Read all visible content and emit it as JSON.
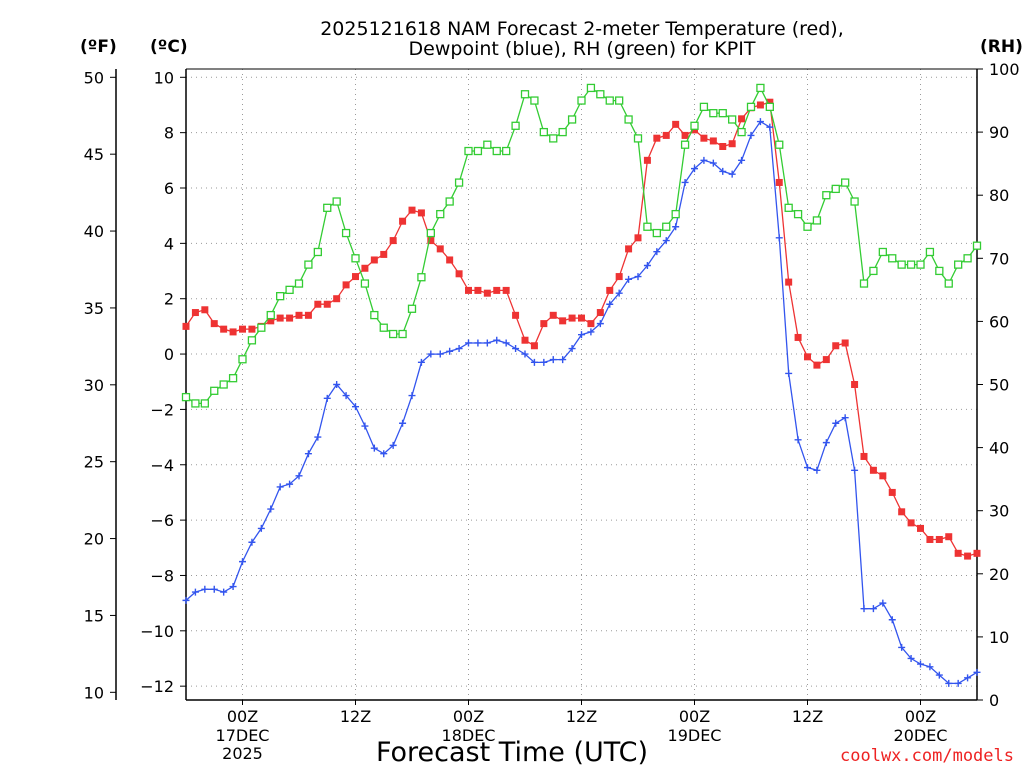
{
  "chart_data": {
    "type": "line",
    "title_line1": "2025121618 NAM Forecast 2-meter Temperature (red),",
    "title_line2": "Dewpoint (blue), RH (green) for KPIT",
    "units": {
      "fahrenheit": "(ºF)",
      "celsius": "(ºC)",
      "rh": "(RH)"
    },
    "xlabel": "Forecast Time (UTC)",
    "credit": "coolwx.com/models",
    "x_unit": "forecast hour",
    "xlim": [
      0,
      84
    ],
    "ylim_celsius": [
      -12.5,
      10.3
    ],
    "ylim_rh": [
      0,
      100
    ],
    "yticks_celsius": [
      "10",
      "8",
      "6",
      "4",
      "2",
      "0",
      "−2",
      "−4",
      "−6",
      "−8",
      "−10",
      "−12"
    ],
    "yticks_fahrenheit": [
      "50",
      "45",
      "40",
      "35",
      "30",
      "25",
      "20",
      "15",
      "10"
    ],
    "yticks_rh": [
      "100",
      "90",
      "80",
      "70",
      "60",
      "50",
      "40",
      "30",
      "20",
      "10",
      "0"
    ],
    "xticks": [
      {
        "hour": 6,
        "line1": "00Z",
        "line2": "17DEC",
        "line3": "2025"
      },
      {
        "hour": 18,
        "line1": "12Z",
        "line2": "",
        "line3": ""
      },
      {
        "hour": 30,
        "line1": "00Z",
        "line2": "18DEC",
        "line3": ""
      },
      {
        "hour": 42,
        "line1": "12Z",
        "line2": "",
        "line3": ""
      },
      {
        "hour": 54,
        "line1": "00Z",
        "line2": "19DEC",
        "line3": ""
      },
      {
        "hour": 66,
        "line1": "12Z",
        "line2": "",
        "line3": ""
      },
      {
        "hour": 78,
        "line1": "00Z",
        "line2": "20DEC",
        "line3": ""
      }
    ],
    "series": [
      {
        "name": "Temperature",
        "unit": "°C",
        "axis": "celsius",
        "color": "#ee3333",
        "marker": "filled-square",
        "points": [
          [
            0,
            1
          ],
          [
            1,
            1.5
          ],
          [
            2,
            1.6
          ],
          [
            3,
            1.1
          ],
          [
            4,
            0.9
          ],
          [
            5,
            0.8
          ],
          [
            6,
            0.9
          ],
          [
            7,
            0.9
          ],
          [
            8,
            1
          ],
          [
            9,
            1.2
          ],
          [
            10,
            1.3
          ],
          [
            11,
            1.3
          ],
          [
            12,
            1.4
          ],
          [
            13,
            1.4
          ],
          [
            14,
            1.8
          ],
          [
            15,
            1.8
          ],
          [
            16,
            2
          ],
          [
            17,
            2.5
          ],
          [
            18,
            2.8
          ],
          [
            19,
            3.1
          ],
          [
            20,
            3.4
          ],
          [
            21,
            3.6
          ],
          [
            22,
            4.1
          ],
          [
            23,
            4.8
          ],
          [
            24,
            5.2
          ],
          [
            25,
            5.1
          ],
          [
            26,
            4.1
          ],
          [
            27,
            3.8
          ],
          [
            28,
            3.4
          ],
          [
            29,
            2.9
          ],
          [
            30,
            2.3
          ],
          [
            31,
            2.3
          ],
          [
            32,
            2.2
          ],
          [
            33,
            2.3
          ],
          [
            34,
            2.3
          ],
          [
            35,
            1.4
          ],
          [
            36,
            0.5
          ],
          [
            37,
            0.3
          ],
          [
            38,
            1.1
          ],
          [
            39,
            1.4
          ],
          [
            40,
            1.2
          ],
          [
            41,
            1.3
          ],
          [
            42,
            1.3
          ],
          [
            43,
            1.1
          ],
          [
            44,
            1.5
          ],
          [
            45,
            2.3
          ],
          [
            46,
            2.8
          ],
          [
            47,
            3.8
          ],
          [
            48,
            4.2
          ],
          [
            49,
            7.0
          ],
          [
            50,
            7.8
          ],
          [
            51,
            7.9
          ],
          [
            52,
            8.3
          ],
          [
            53,
            7.9
          ],
          [
            54,
            8.1
          ],
          [
            55,
            7.8
          ],
          [
            56,
            7.7
          ],
          [
            57,
            7.5
          ],
          [
            58,
            7.6
          ],
          [
            59,
            8.5
          ],
          [
            60,
            8.9
          ],
          [
            61,
            9.0
          ],
          [
            62,
            9.1
          ],
          [
            63,
            6.2
          ],
          [
            64,
            2.6
          ],
          [
            65,
            0.6
          ],
          [
            66,
            -0.1
          ],
          [
            67,
            -0.4
          ],
          [
            68,
            -0.2
          ],
          [
            69,
            0.3
          ],
          [
            70,
            0.4
          ],
          [
            71,
            -1.1
          ],
          [
            72,
            -3.7
          ],
          [
            73,
            -4.2
          ],
          [
            74,
            -4.4
          ],
          [
            75,
            -5.0
          ],
          [
            76,
            -5.7
          ],
          [
            77,
            -6.1
          ],
          [
            78,
            -6.3
          ],
          [
            79,
            -6.7
          ],
          [
            80,
            -6.7
          ],
          [
            81,
            -6.6
          ],
          [
            82,
            -7.2
          ],
          [
            83,
            -7.3
          ],
          [
            84,
            -7.2
          ]
        ]
      },
      {
        "name": "Dewpoint",
        "unit": "°C",
        "axis": "celsius",
        "color": "#3355ee",
        "marker": "plus",
        "points": [
          [
            0,
            -8.9
          ],
          [
            1,
            -8.6
          ],
          [
            2,
            -8.5
          ],
          [
            3,
            -8.5
          ],
          [
            4,
            -8.6
          ],
          [
            5,
            -8.4
          ],
          [
            6,
            -7.5
          ],
          [
            7,
            -6.8
          ],
          [
            8,
            -6.3
          ],
          [
            9,
            -5.6
          ],
          [
            10,
            -4.8
          ],
          [
            11,
            -4.7
          ],
          [
            12,
            -4.4
          ],
          [
            13,
            -3.6
          ],
          [
            14,
            -3.0
          ],
          [
            15,
            -1.6
          ],
          [
            16,
            -1.1
          ],
          [
            17,
            -1.5
          ],
          [
            18,
            -1.9
          ],
          [
            19,
            -2.6
          ],
          [
            20,
            -3.4
          ],
          [
            21,
            -3.6
          ],
          [
            22,
            -3.3
          ],
          [
            23,
            -2.5
          ],
          [
            24,
            -1.5
          ],
          [
            25,
            -0.3
          ],
          [
            26,
            0
          ],
          [
            27,
            0
          ],
          [
            28,
            0.1
          ],
          [
            29,
            0.2
          ],
          [
            30,
            0.4
          ],
          [
            31,
            0.4
          ],
          [
            32,
            0.4
          ],
          [
            33,
            0.5
          ],
          [
            34,
            0.4
          ],
          [
            35,
            0.2
          ],
          [
            36,
            0
          ],
          [
            37,
            -0.3
          ],
          [
            38,
            -0.3
          ],
          [
            39,
            -0.2
          ],
          [
            40,
            -0.2
          ],
          [
            41,
            0.2
          ],
          [
            42,
            0.7
          ],
          [
            43,
            0.8
          ],
          [
            44,
            1.1
          ],
          [
            45,
            1.8
          ],
          [
            46,
            2.2
          ],
          [
            47,
            2.7
          ],
          [
            48,
            2.8
          ],
          [
            49,
            3.2
          ],
          [
            50,
            3.7
          ],
          [
            51,
            4.1
          ],
          [
            52,
            4.6
          ],
          [
            53,
            6.2
          ],
          [
            54,
            6.7
          ],
          [
            55,
            7
          ],
          [
            56,
            6.9
          ],
          [
            57,
            6.6
          ],
          [
            58,
            6.5
          ],
          [
            59,
            7.0
          ],
          [
            60,
            7.9
          ],
          [
            61,
            8.4
          ],
          [
            62,
            8.2
          ],
          [
            63,
            4.2
          ],
          [
            64,
            -0.7
          ],
          [
            65,
            -3.1
          ],
          [
            66,
            -4.1
          ],
          [
            67,
            -4.2
          ],
          [
            68,
            -3.2
          ],
          [
            69,
            -2.5
          ],
          [
            70,
            -2.3
          ],
          [
            71,
            -4.2
          ],
          [
            72,
            -9.2
          ],
          [
            73,
            -9.2
          ],
          [
            74,
            -9
          ],
          [
            75,
            -9.6
          ],
          [
            76,
            -10.6
          ],
          [
            77,
            -11
          ],
          [
            78,
            -11.2
          ],
          [
            79,
            -11.3
          ],
          [
            80,
            -11.6
          ],
          [
            81,
            -11.9
          ],
          [
            82,
            -11.9
          ],
          [
            83,
            -11.7
          ],
          [
            84,
            -11.5
          ]
        ]
      },
      {
        "name": "Relative Humidity",
        "unit": "%",
        "axis": "rh",
        "color": "#33cc33",
        "marker": "open-square",
        "points": [
          [
            0,
            48
          ],
          [
            1,
            47
          ],
          [
            2,
            47
          ],
          [
            3,
            49
          ],
          [
            4,
            50
          ],
          [
            5,
            51
          ],
          [
            6,
            54
          ],
          [
            7,
            57
          ],
          [
            8,
            59
          ],
          [
            9,
            61
          ],
          [
            10,
            64
          ],
          [
            11,
            65
          ],
          [
            12,
            66
          ],
          [
            13,
            69
          ],
          [
            14,
            71
          ],
          [
            15,
            78
          ],
          [
            16,
            79
          ],
          [
            17,
            74
          ],
          [
            18,
            70
          ],
          [
            19,
            66
          ],
          [
            20,
            61
          ],
          [
            21,
            59
          ],
          [
            22,
            58
          ],
          [
            23,
            58
          ],
          [
            24,
            62
          ],
          [
            25,
            67
          ],
          [
            26,
            74
          ],
          [
            27,
            77
          ],
          [
            28,
            79
          ],
          [
            29,
            82
          ],
          [
            30,
            87
          ],
          [
            31,
            87
          ],
          [
            32,
            88
          ],
          [
            33,
            87
          ],
          [
            34,
            87
          ],
          [
            35,
            91
          ],
          [
            36,
            96
          ],
          [
            37,
            95
          ],
          [
            38,
            90
          ],
          [
            39,
            89
          ],
          [
            40,
            90
          ],
          [
            41,
            92
          ],
          [
            42,
            95
          ],
          [
            43,
            97
          ],
          [
            44,
            96
          ],
          [
            45,
            95
          ],
          [
            46,
            95
          ],
          [
            47,
            92
          ],
          [
            48,
            89
          ],
          [
            49,
            75
          ],
          [
            50,
            74
          ],
          [
            51,
            75
          ],
          [
            52,
            77
          ],
          [
            53,
            88
          ],
          [
            54,
            91
          ],
          [
            55,
            94
          ],
          [
            56,
            93
          ],
          [
            57,
            93
          ],
          [
            58,
            92
          ],
          [
            59,
            90
          ],
          [
            60,
            94
          ],
          [
            61,
            97
          ],
          [
            62,
            94
          ],
          [
            63,
            88
          ],
          [
            64,
            78
          ],
          [
            65,
            77
          ],
          [
            66,
            75
          ],
          [
            67,
            76
          ],
          [
            68,
            80
          ],
          [
            69,
            81
          ],
          [
            70,
            82
          ],
          [
            71,
            79
          ],
          [
            72,
            66
          ],
          [
            73,
            68
          ],
          [
            74,
            71
          ],
          [
            75,
            70
          ],
          [
            76,
            69
          ],
          [
            77,
            69
          ],
          [
            78,
            69
          ],
          [
            79,
            71
          ],
          [
            80,
            68
          ],
          [
            81,
            66
          ],
          [
            82,
            69
          ],
          [
            83,
            70
          ],
          [
            84,
            72
          ]
        ]
      }
    ]
  }
}
